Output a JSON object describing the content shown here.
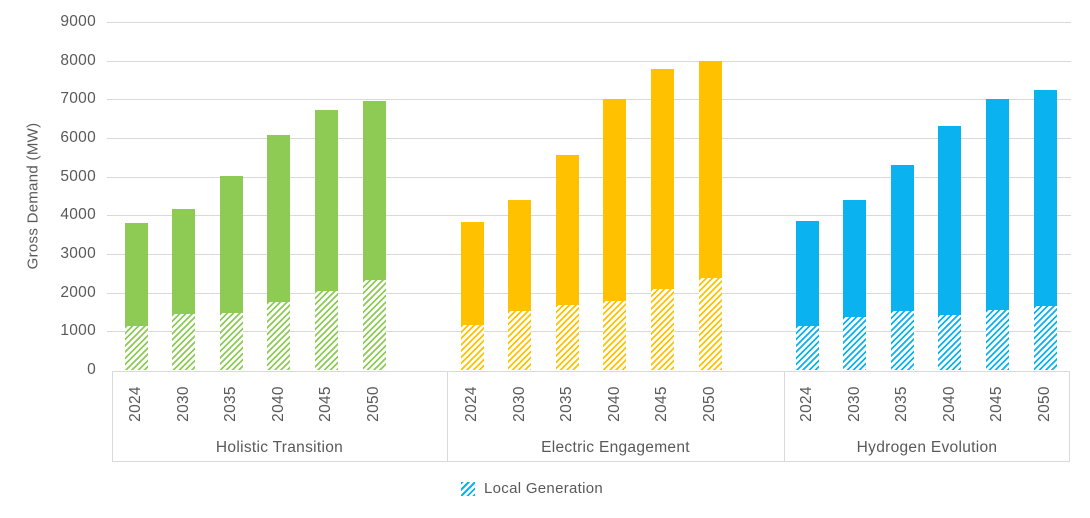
{
  "chart_data": {
    "type": "bar",
    "stacked": true,
    "title": "",
    "ylabel": "Gross Demand (MW)",
    "xlabel": "",
    "ylim": [
      0,
      9000
    ],
    "yticks": [
      0,
      1000,
      2000,
      3000,
      4000,
      5000,
      6000,
      7000,
      8000,
      9000
    ],
    "grid": "horizontal",
    "categories": [
      "2024",
      "2030",
      "2035",
      "2040",
      "2045",
      "2050"
    ],
    "legend": {
      "label": "Local Generation",
      "swatch_style": "diagonal-hatch",
      "swatch_color": "#0AB2F0",
      "position": "bottom-center"
    },
    "series_semantics": "Each bar is total gross demand (MW); the hatched bottom segment is the Local Generation portion, the solid top segment is the remainder.",
    "groups": [
      {
        "label": "Holistic Transition",
        "color": "#8DCB55",
        "total_gross_demand": [
          3790,
          4160,
          5010,
          6080,
          6730,
          6960
        ],
        "local_generation": [
          1140,
          1440,
          1480,
          1750,
          2030,
          2330
        ]
      },
      {
        "label": "Electric Engagement",
        "color": "#FFC100",
        "total_gross_demand": [
          3840,
          4400,
          5570,
          7000,
          7780,
          7990
        ],
        "local_generation": [
          1160,
          1520,
          1670,
          1780,
          2090,
          2370
        ]
      },
      {
        "label": "Hydrogen Evolution",
        "color": "#0AB2F0",
        "total_gross_demand": [
          3860,
          4390,
          5310,
          6300,
          7010,
          7240
        ],
        "local_generation": [
          1140,
          1370,
          1520,
          1420,
          1550,
          1660
        ]
      }
    ]
  },
  "colors": {
    "grid": "#D9D9D9",
    "axis_text": "#595959",
    "background": "#FFFFFF"
  }
}
